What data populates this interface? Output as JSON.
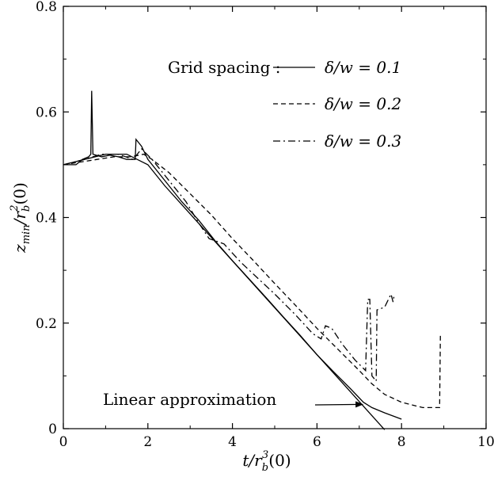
{
  "chart_data": {
    "type": "line",
    "xlabel": "t/r_b^3(0)",
    "ylabel": "z_min/r_b^2(0)",
    "xlim": [
      0,
      10
    ],
    "ylim": [
      0,
      0.8
    ],
    "xticks": [
      "0",
      "2",
      "4",
      "6",
      "8",
      "10"
    ],
    "yticks": [
      "0",
      "0.2",
      "0.4",
      "0.6",
      "0.8"
    ],
    "legend_title": "Grid spacing :",
    "legend_placement": "top-right",
    "grid": false,
    "series": [
      {
        "name": "δ/w = 0.1",
        "dash": "solid",
        "points": [
          [
            0,
            0.5
          ],
          [
            0.3,
            0.5
          ],
          [
            0.45,
            0.51
          ],
          [
            0.6,
            0.515
          ],
          [
            0.65,
            0.52
          ],
          [
            0.67,
            0.64
          ],
          [
            0.7,
            0.52
          ],
          [
            0.9,
            0.515
          ],
          [
            1.1,
            0.518
          ],
          [
            1.3,
            0.515
          ],
          [
            1.5,
            0.51
          ],
          [
            1.7,
            0.51
          ],
          [
            1.72,
            0.548
          ],
          [
            1.85,
            0.535
          ],
          [
            2.0,
            0.51
          ],
          [
            2.4,
            0.47
          ],
          [
            2.8,
            0.43
          ],
          [
            3.2,
            0.395
          ],
          [
            3.6,
            0.355
          ],
          [
            4.0,
            0.318
          ],
          [
            4.4,
            0.283
          ],
          [
            4.8,
            0.248
          ],
          [
            5.2,
            0.212
          ],
          [
            5.6,
            0.177
          ],
          [
            6.0,
            0.14
          ],
          [
            6.4,
            0.107
          ],
          [
            6.8,
            0.075
          ],
          [
            7.1,
            0.05
          ],
          [
            7.3,
            0.04
          ],
          [
            7.6,
            0.03
          ],
          [
            8.0,
            0.018
          ]
        ]
      },
      {
        "name": "δ/w = 0.2",
        "dash": "dash",
        "points": [
          [
            0,
            0.5
          ],
          [
            0.4,
            0.505
          ],
          [
            0.8,
            0.51
          ],
          [
            1.2,
            0.515
          ],
          [
            1.6,
            0.515
          ],
          [
            1.9,
            0.52
          ],
          [
            2.1,
            0.51
          ],
          [
            2.5,
            0.485
          ],
          [
            3.0,
            0.445
          ],
          [
            3.5,
            0.405
          ],
          [
            4.0,
            0.36
          ],
          [
            4.5,
            0.318
          ],
          [
            5.0,
            0.275
          ],
          [
            5.5,
            0.233
          ],
          [
            6.0,
            0.19
          ],
          [
            6.5,
            0.15
          ],
          [
            7.0,
            0.11
          ],
          [
            7.3,
            0.085
          ],
          [
            7.6,
            0.065
          ],
          [
            8.0,
            0.05
          ],
          [
            8.5,
            0.04
          ],
          [
            8.9,
            0.04
          ],
          [
            8.92,
            0.18
          ]
        ]
      },
      {
        "name": "δ/w = 0.3",
        "dash": "dashdot",
        "points": [
          [
            0,
            0.5
          ],
          [
            0.5,
            0.51
          ],
          [
            0.9,
            0.52
          ],
          [
            1.3,
            0.52
          ],
          [
            1.65,
            0.51
          ],
          [
            1.85,
            0.53
          ],
          [
            2.1,
            0.51
          ],
          [
            2.5,
            0.47
          ],
          [
            2.9,
            0.43
          ],
          [
            3.2,
            0.39
          ],
          [
            3.45,
            0.36
          ],
          [
            3.8,
            0.35
          ],
          [
            4.2,
            0.315
          ],
          [
            4.6,
            0.285
          ],
          [
            5.0,
            0.255
          ],
          [
            5.5,
            0.215
          ],
          [
            5.9,
            0.18
          ],
          [
            6.1,
            0.17
          ],
          [
            6.2,
            0.195
          ],
          [
            6.35,
            0.19
          ],
          [
            6.6,
            0.16
          ],
          [
            6.9,
            0.13
          ],
          [
            7.15,
            0.11
          ],
          [
            7.2,
            0.245
          ],
          [
            7.25,
            0.245
          ],
          [
            7.3,
            0.1
          ],
          [
            7.4,
            0.09
          ],
          [
            7.42,
            0.225
          ],
          [
            7.6,
            0.23
          ],
          [
            7.75,
            0.255
          ],
          [
            7.8,
            0.24
          ],
          [
            7.82,
            0.25
          ]
        ]
      },
      {
        "name": "Linear approximation",
        "dash": "solid",
        "points": [
          [
            0,
            0.5
          ],
          [
            1.0,
            0.52
          ],
          [
            1.5,
            0.52
          ],
          [
            2.0,
            0.5
          ],
          [
            2.4,
            0.46
          ],
          [
            7.6,
            -0.002
          ]
        ]
      }
    ],
    "annotations": [
      {
        "text": "Linear approximation",
        "x": 7.1,
        "y": 0.046
      }
    ]
  }
}
